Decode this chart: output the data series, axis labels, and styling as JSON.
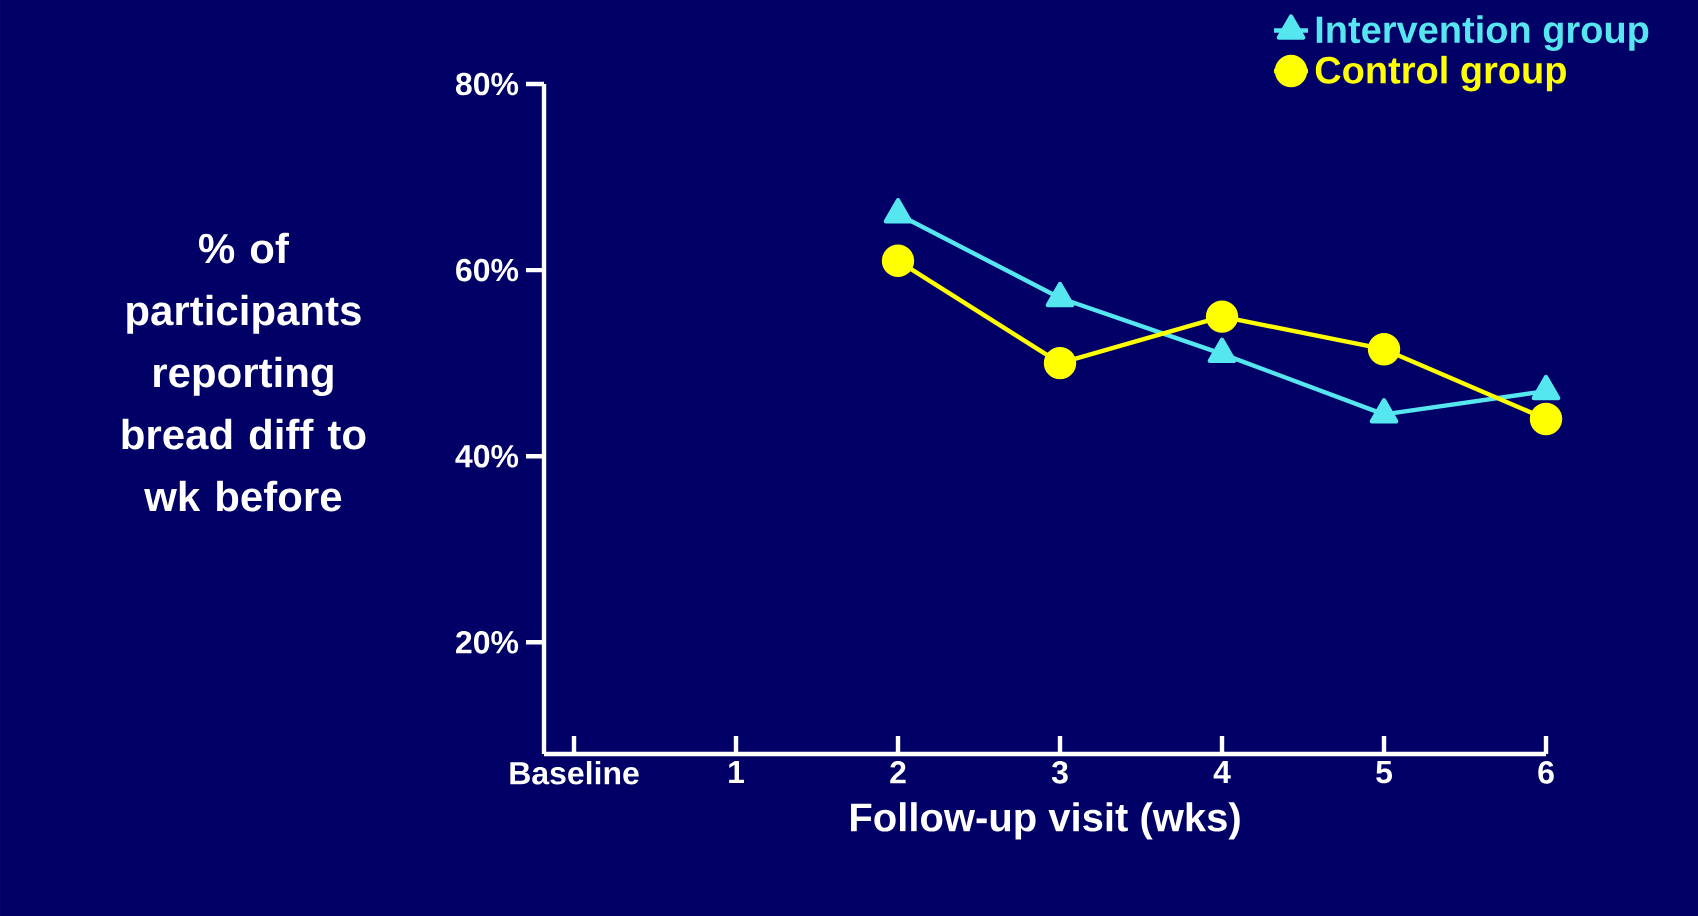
{
  "chart_data": {
    "type": "line",
    "xlabel": "Follow-up visit (wks)",
    "ylabel": "% of participants reporting bread diff to wk before",
    "categories": [
      "Baseline",
      "1",
      "2",
      "3",
      "4",
      "5",
      "6"
    ],
    "series": [
      {
        "name": "Intervention group",
        "color": "#55e6f0",
        "marker": "triangle",
        "values": [
          null,
          null,
          66,
          57,
          51,
          44.5,
          47
        ]
      },
      {
        "name": "Control group",
        "color": "#ffff00",
        "marker": "circle",
        "values": [
          null,
          null,
          61,
          50,
          55,
          51.5,
          44
        ]
      }
    ],
    "ylim": [
      8,
      80
    ],
    "yticks": [
      {
        "value": 20,
        "label": "20%"
      },
      {
        "value": 40,
        "label": "40%"
      },
      {
        "value": 60,
        "label": "60%"
      },
      {
        "value": 80,
        "label": "80%"
      }
    ],
    "legend": "top right",
    "grid": false
  }
}
